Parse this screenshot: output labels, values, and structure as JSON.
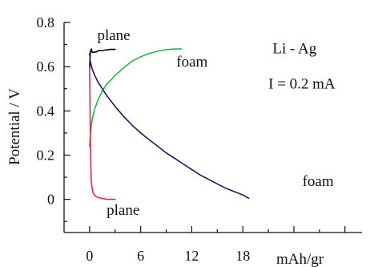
{
  "chart_data": {
    "type": "line",
    "ylabel": "Potential / V",
    "xlabel": "mAh/gr",
    "xlim": [
      -3,
      32
    ],
    "ylim": [
      -0.15,
      0.8
    ],
    "x_ticks": [
      0,
      6,
      12,
      18
    ],
    "x_tick_labels": [
      "0",
      "6",
      "12",
      "18"
    ],
    "y_ticks": [
      0,
      0.2,
      0.4,
      0.6,
      0.8
    ],
    "y_tick_labels": [
      "0",
      "0.2",
      "0.4",
      "0.6",
      "0.8"
    ],
    "grid": false,
    "annotations": [
      {
        "text": "Li - Ag",
        "x": 21.5,
        "y": 0.66
      },
      {
        "text": "I = 0.2 mA",
        "x": 21.0,
        "y": 0.5
      },
      {
        "text": "plane",
        "x": 0.9,
        "y": 0.72
      },
      {
        "text": "foam",
        "x": 10.2,
        "y": 0.6
      },
      {
        "text": "foam",
        "x": 25.0,
        "y": 0.06
      },
      {
        "text": "plane",
        "x": 2.0,
        "y": -0.07
      }
    ],
    "series": [
      {
        "color": "#000000",
        "x": [
          0.0,
          0.05,
          0.1,
          0.2,
          0.3,
          0.5,
          0.8,
          1.0,
          1.5,
          2.0,
          2.5,
          3.0
        ],
        "y": [
          0.59,
          0.64,
          0.67,
          0.68,
          0.665,
          0.665,
          0.667,
          0.672,
          0.673,
          0.676,
          0.678,
          0.678
        ]
      },
      {
        "color": "#22b84a",
        "x": [
          0.0,
          0.1,
          0.3,
          0.6,
          1.0,
          1.5,
          2.0,
          3.0,
          4.0,
          5.0,
          6.0,
          7.0,
          8.0,
          9.0,
          10.0,
          10.8
        ],
        "y": [
          0.24,
          0.3,
          0.36,
          0.41,
          0.45,
          0.49,
          0.52,
          0.56,
          0.595,
          0.625,
          0.645,
          0.66,
          0.67,
          0.677,
          0.68,
          0.68
        ]
      },
      {
        "color": "#1a1a5e",
        "x": [
          0.0,
          0.1,
          0.3,
          0.6,
          1.0,
          1.5,
          2.0,
          3.0,
          4.0,
          5.0,
          6.0,
          7.0,
          8.0,
          9.0,
          10.0,
          11.0,
          12.0,
          13.0,
          14.0,
          15.0,
          16.0,
          17.0,
          18.0,
          18.7
        ],
        "y": [
          0.66,
          0.62,
          0.59,
          0.56,
          0.53,
          0.5,
          0.47,
          0.42,
          0.375,
          0.335,
          0.3,
          0.27,
          0.24,
          0.21,
          0.185,
          0.16,
          0.135,
          0.11,
          0.09,
          0.07,
          0.05,
          0.035,
          0.02,
          0.005
        ]
      },
      {
        "color": "#d92b4b",
        "x": [
          0.0,
          0.03,
          0.06,
          0.1,
          0.15,
          0.2,
          0.3,
          0.4,
          0.6,
          0.8,
          1.0,
          1.5,
          2.0,
          2.5,
          3.0
        ],
        "y": [
          0.6,
          0.5,
          0.38,
          0.26,
          0.15,
          0.08,
          0.05,
          0.03,
          0.018,
          0.012,
          0.008,
          0.004,
          0.001,
          0.0,
          0.0
        ]
      }
    ]
  }
}
